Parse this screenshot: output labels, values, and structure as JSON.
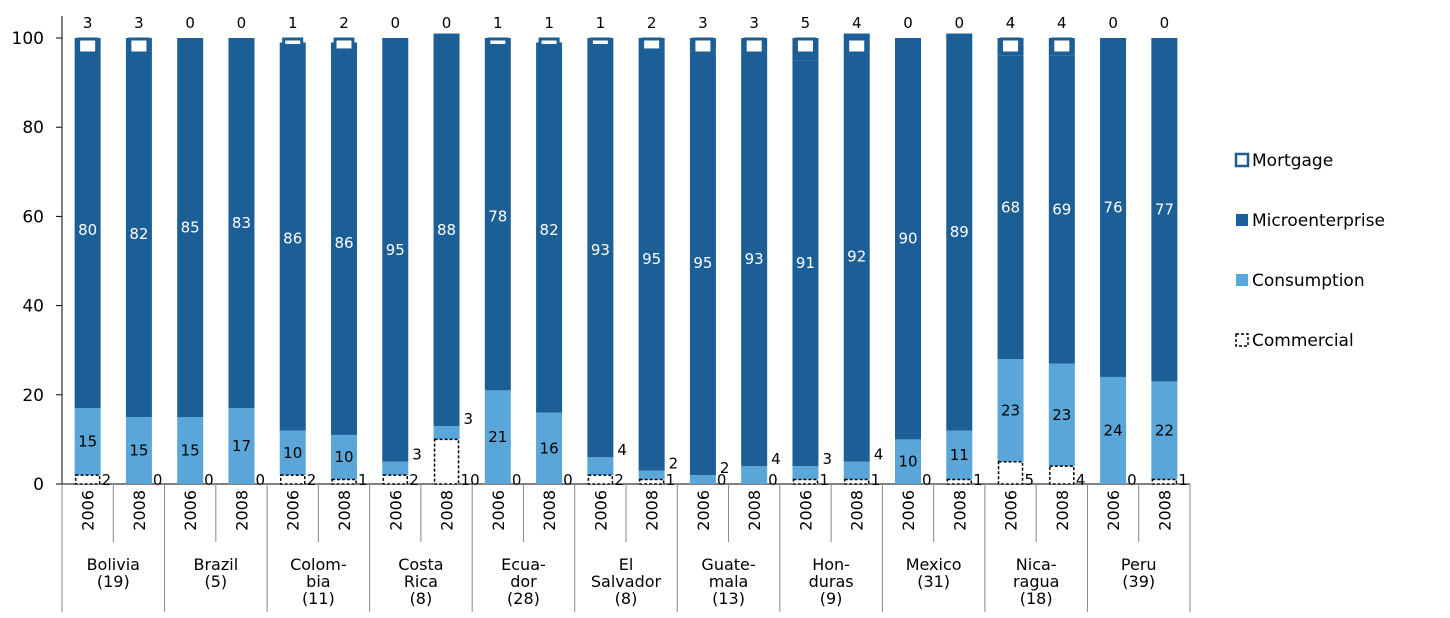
{
  "chart_data": {
    "type": "bar",
    "stacked": true,
    "ylim": [
      0,
      100
    ],
    "yticks": [
      0,
      20,
      40,
      60,
      80,
      100
    ],
    "grid": false,
    "legend_position": "right",
    "colors": {
      "Mortgage": "#1c5e96",
      "Microenterprise": "#1c5e96",
      "Consumption": "#5aa6d8",
      "Commercial": "#ffffff"
    },
    "countries": [
      {
        "name": "Bolivia\n(19)",
        "years": [
          "2006",
          "2008"
        ]
      },
      {
        "name": "Brazil\n(5)",
        "years": [
          "2006",
          "2008"
        ]
      },
      {
        "name": "Colom-\nbia\n(11)",
        "years": [
          "2006",
          "2008"
        ]
      },
      {
        "name": "Costa\nRica\n(8)",
        "years": [
          "2006",
          "2008"
        ]
      },
      {
        "name": "Ecua-\ndor\n(28)",
        "years": [
          "2006",
          "2008"
        ]
      },
      {
        "name": "El\nSalvador\n(8)",
        "years": [
          "2006",
          "2008"
        ]
      },
      {
        "name": "Guate-\nmala\n(13)",
        "years": [
          "2006",
          "2008"
        ]
      },
      {
        "name": "Hon-\nduras\n(9)",
        "years": [
          "2006",
          "2008"
        ]
      },
      {
        "name": "Mexico\n(31)",
        "years": [
          "2006",
          "2008"
        ]
      },
      {
        "name": "Nica-\nragua\n(18)",
        "years": [
          "2006",
          "2008"
        ]
      },
      {
        "name": "Peru\n(39)",
        "years": [
          "2006",
          "2008"
        ]
      }
    ],
    "series": [
      {
        "name": "Commercial",
        "values": [
          2,
          0,
          0,
          0,
          2,
          1,
          2,
          10,
          0,
          0,
          2,
          1,
          0,
          0,
          1,
          1,
          0,
          1,
          5,
          4,
          0,
          1
        ]
      },
      {
        "name": "Consumption",
        "values": [
          15,
          15,
          15,
          17,
          10,
          10,
          3,
          3,
          21,
          16,
          4,
          2,
          2,
          4,
          3,
          4,
          10,
          11,
          23,
          23,
          24,
          22
        ]
      },
      {
        "name": "Microenterprise",
        "values": [
          80,
          82,
          85,
          83,
          86,
          86,
          95,
          88,
          78,
          82,
          93,
          95,
          95,
          93,
          91,
          92,
          90,
          89,
          68,
          69,
          76,
          77
        ]
      },
      {
        "name": "Mortgage",
        "values": [
          3,
          3,
          0,
          0,
          1,
          2,
          0,
          0,
          1,
          1,
          1,
          2,
          3,
          3,
          5,
          4,
          0,
          0,
          4,
          4,
          0,
          0
        ]
      }
    ]
  }
}
